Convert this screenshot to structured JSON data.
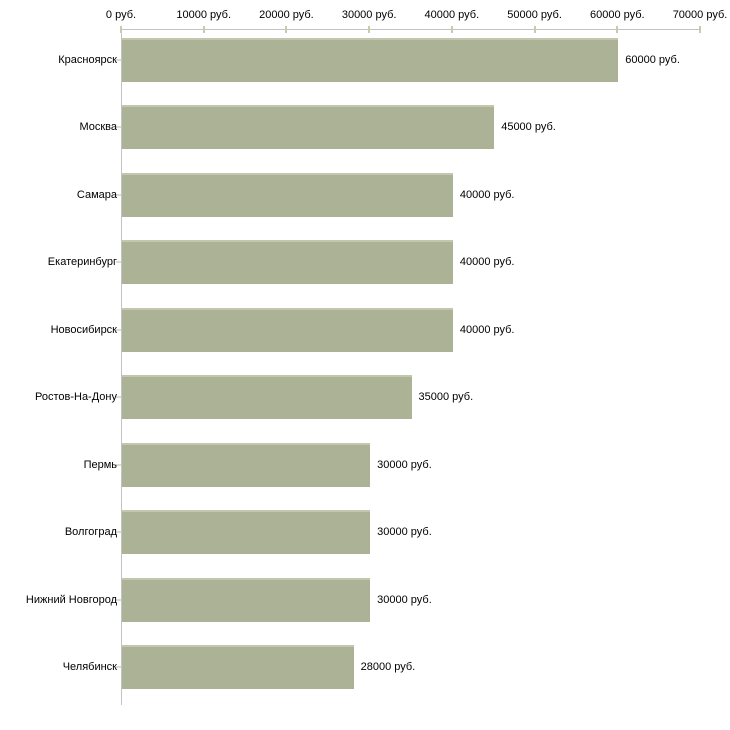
{
  "chart_data": {
    "type": "bar",
    "orientation": "horizontal",
    "title": "",
    "categories": [
      "Красноярск",
      "Москва",
      "Самара",
      "Екатеринбург",
      "Новосибирск",
      "Ростов-На-Дону",
      "Пермь",
      "Волгоград",
      "Нижний Новгород",
      "Челябинск"
    ],
    "values": [
      60000,
      45000,
      40000,
      40000,
      40000,
      35000,
      30000,
      30000,
      30000,
      28000
    ],
    "value_labels": [
      "60000 руб.",
      "45000 руб.",
      "40000 руб.",
      "40000 руб.",
      "40000 руб.",
      "35000 руб.",
      "30000 руб.",
      "30000 руб.",
      "30000 руб.",
      "28000 руб."
    ],
    "x_axis": {
      "position": "top",
      "min": 0,
      "max": 70000,
      "tick_values": [
        0,
        10000,
        20000,
        30000,
        40000,
        50000,
        60000,
        70000
      ],
      "tick_labels": [
        "0 руб.",
        "10000 руб.",
        "20000 руб.",
        "30000 руб.",
        "40000 руб.",
        "50000 руб.",
        "60000 руб.",
        "70000 руб."
      ]
    },
    "grid": false,
    "legend": false,
    "unit": "руб.",
    "colors": {
      "bar": "#acb296",
      "bar_top_edge": "#c2c7ad",
      "axis_line": "#c3c3c3",
      "x_tick": "#cbcba8",
      "y_tick": "#ddddd0",
      "text": "#000000",
      "background": "#ffffff"
    }
  }
}
